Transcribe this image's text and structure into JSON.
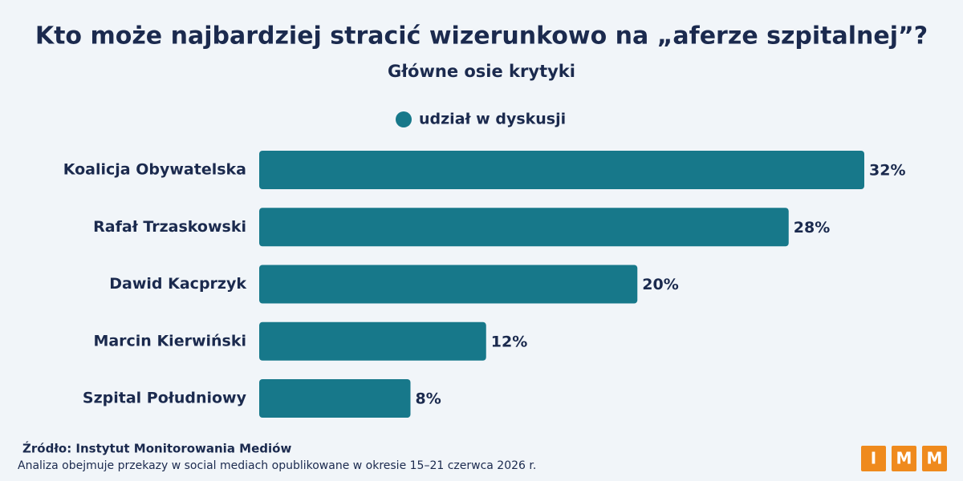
{
  "chart_data": {
    "type": "bar",
    "orientation": "horizontal",
    "title": "Kto może najbardziej stracić wizerunkowo na „aferze szpitalnej”?",
    "subtitle": "Główne osie krytyki",
    "categories": [
      "Koalicja Obywatelska",
      "Rafał Trzaskowski",
      "Dawid Kacprzyk",
      "Marcin Kierwiński",
      "Szpital Południowy"
    ],
    "series": [
      {
        "name": "udział w dyskusji",
        "color": "#17788a",
        "values": [
          32,
          28,
          20,
          12,
          8
        ],
        "value_labels": [
          "32%",
          "28%",
          "20%",
          "12%",
          "8%"
        ]
      }
    ]
  },
  "footer": {
    "source": "Źródło: Instytut Monitorowania Mediów",
    "note": "Analiza obejmuje przekazy w  social mediach opublikowane w okresie 15–21 czerwca 2026 r."
  },
  "logo": {
    "letters": [
      "I",
      "M",
      "M"
    ],
    "color": "#ef8a1d"
  }
}
